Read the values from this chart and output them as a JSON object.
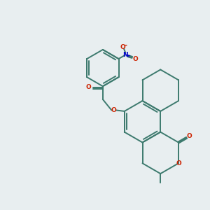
{
  "bg_color": "#e8eef0",
  "bond_color": "#3d7a6e",
  "oxygen_color": "#cc2200",
  "nitrogen_color": "#0000cc",
  "lw": 1.4,
  "fig_size": [
    3.0,
    3.0
  ],
  "dpi": 100,
  "xlim": [
    0,
    10
  ],
  "ylim": [
    0,
    10
  ]
}
